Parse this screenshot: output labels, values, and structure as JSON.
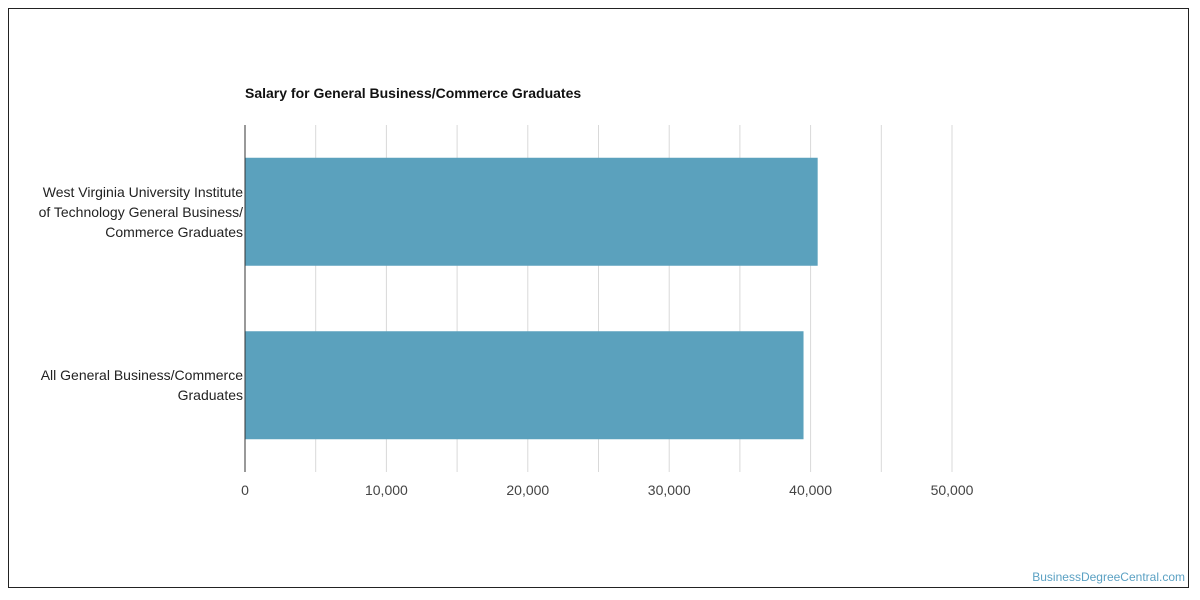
{
  "chart_data": {
    "type": "bar",
    "orientation": "horizontal",
    "title": "Salary for General Business/Commerce Graduates",
    "categories": [
      "West Virginia University Institute of Technology General Business/ Commerce Graduates",
      "All General Business/Commerce Graduates"
    ],
    "category_lines": [
      [
        "West Virginia University Institute",
        "of Technology General Business/",
        "Commerce Graduates"
      ],
      [
        "All General Business/Commerce",
        "Graduates"
      ]
    ],
    "values": [
      40500,
      39500
    ],
    "xlim": [
      0,
      50000
    ],
    "xticks": [
      0,
      10000,
      20000,
      30000,
      40000,
      50000
    ],
    "xtick_labels": [
      "0",
      "10,000",
      "20,000",
      "30,000",
      "40,000",
      "50,000"
    ],
    "grid": true,
    "bar_color": "#5ba1bd"
  },
  "watermark": "BusinessDegreeCentral.com"
}
